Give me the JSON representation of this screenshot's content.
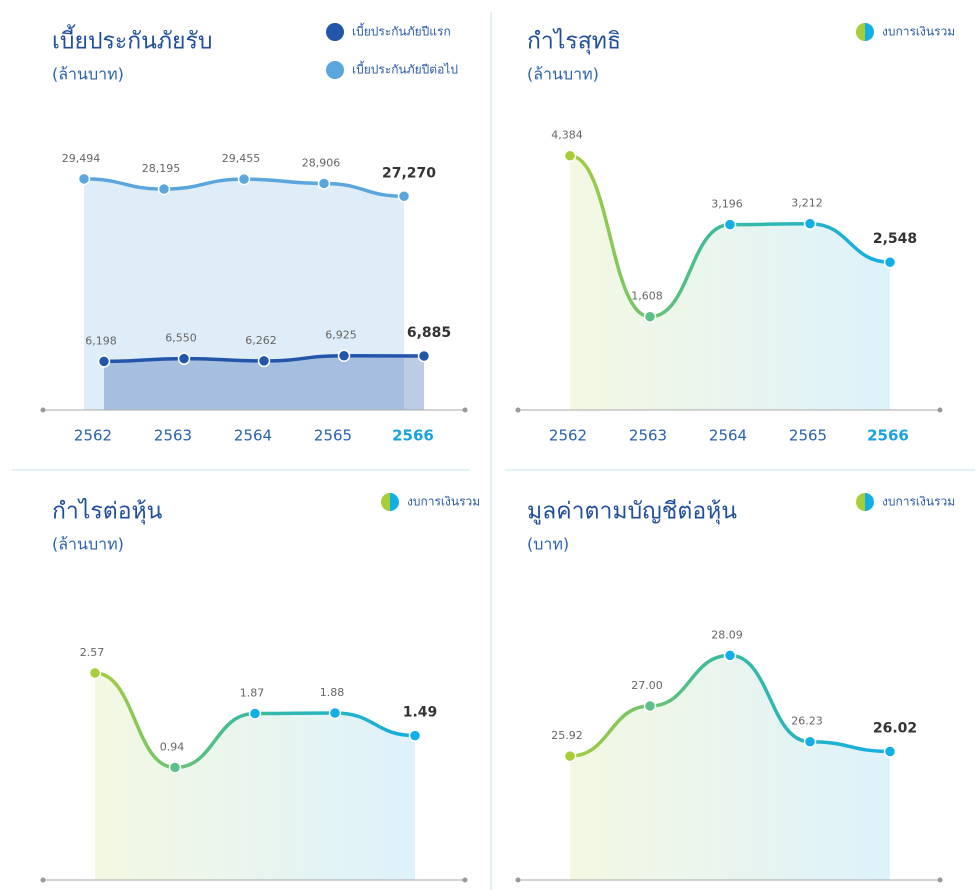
{
  "chart_data": [
    {
      "type": "line",
      "title": "เบี้ยประกันภัยรับ",
      "subtitle": "(ล้านบาท)",
      "categories": [
        "2562",
        "2563",
        "2564",
        "2565",
        "2566"
      ],
      "series": [
        {
          "name": "เบี้ยประกันภัยปีแรก",
          "color": "#2356a8",
          "values": [
            6198,
            6550,
            6262,
            6925,
            6885
          ],
          "value_labels": [
            "6,198",
            "6,550",
            "6,262",
            "6,925",
            "6,885"
          ]
        },
        {
          "name": "เบี้ยประกันภัยปีต่อไป",
          "color": "#5ba6dc",
          "values": [
            29494,
            28195,
            29455,
            28906,
            27270
          ],
          "value_labels": [
            "29,494",
            "28,195",
            "29,455",
            "28,906",
            "27,270"
          ]
        }
      ],
      "ylim": [
        0,
        37000
      ],
      "legend": "top-right"
    },
    {
      "type": "line",
      "title": "กำไรสุทธิ",
      "subtitle": "(ล้านบาท)",
      "categories": [
        "2562",
        "2563",
        "2564",
        "2565",
        "2566"
      ],
      "series": [
        {
          "name": "งบการเงินรวม",
          "color": [
            "#a6ce39",
            "#12aee6"
          ],
          "values": [
            4384,
            1608,
            3196,
            3212,
            2548
          ],
          "value_labels": [
            "4,384",
            "1,608",
            "3,196",
            "3,212",
            "2,548"
          ]
        }
      ],
      "ylim": [
        0,
        5000
      ],
      "legend": "top-right"
    },
    {
      "type": "line",
      "title": "กำไรต่อหุ้น",
      "subtitle": "(ล้านบาท)",
      "categories": [
        null,
        null,
        null,
        null,
        null
      ],
      "series": [
        {
          "name": "งบการเงินรวม",
          "color": [
            "#a6ce39",
            "#12aee6"
          ],
          "values": [
            2.57,
            0.94,
            1.87,
            1.88,
            1.49
          ]
        }
      ],
      "ylim": [
        -1,
        4
      ],
      "legend": "top-right"
    },
    {
      "type": "line",
      "title": "มูลค่าตามบัญชีต่อหุ้น",
      "subtitle": "(บาท)",
      "categories": [
        null,
        null,
        null,
        null,
        null
      ],
      "series": [
        {
          "name": "งบการเงินรวม",
          "color": [
            "#a6ce39",
            "#12aee6"
          ],
          "values": [
            25.92,
            27.0,
            28.09,
            26.23,
            26.02
          ],
          "value_labels": [
            "25.92",
            "27.00",
            "28.09",
            "26.23",
            "26.02"
          ]
        }
      ],
      "ylim": [
        23.25,
        29.5
      ],
      "legend": "top-right"
    }
  ]
}
